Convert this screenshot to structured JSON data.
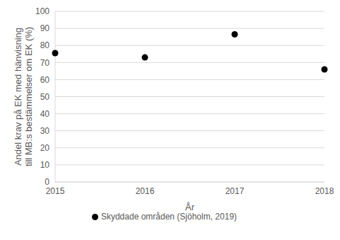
{
  "chart_data": {
    "type": "scatter",
    "x_label": "År",
    "y_label": "Andel krav på EK med hänvisning till MB:s bestämmelser om EK (%)",
    "x": [
      2015,
      2016,
      2017,
      2018
    ],
    "series": [
      {
        "name": "Skyddade områden (Sjöholm, 2019)",
        "color": "#000000",
        "marker": "circle",
        "values": [
          75.5,
          73,
          86.5,
          66
        ]
      }
    ],
    "xlim": [
      2015,
      2018
    ],
    "xticks": [
      2015,
      2016,
      2017,
      2018
    ],
    "ylim": [
      0,
      100
    ],
    "yticks": [
      0,
      10,
      20,
      30,
      40,
      50,
      60,
      70,
      80,
      90,
      100
    ],
    "grid": true,
    "legend": "bottom"
  }
}
